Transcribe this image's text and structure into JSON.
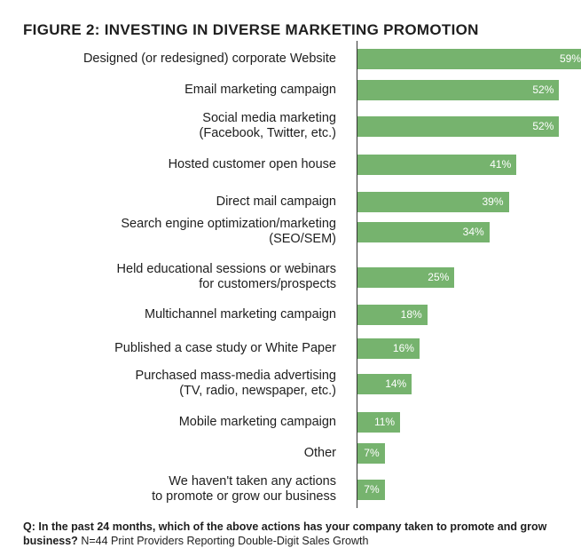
{
  "chart_data": {
    "type": "bar",
    "orientation": "horizontal",
    "title": "FIGURE 2: INVESTING IN DIVERSE MARKETING PROMOTION",
    "categories": [
      "Designed (or redesigned) corporate Website",
      "Email marketing campaign",
      "Social media marketing\n(Facebook, Twitter, etc.)",
      "Hosted customer open house",
      "Direct mail campaign",
      "Search engine optimization/marketing\n(SEO/SEM)",
      "Held educational sessions or webinars\nfor customers/prospects",
      "Multichannel marketing campaign",
      "Published a case study or White Paper",
      "Purchased mass-media advertising\n(TV, radio, newspaper, etc.)",
      "Mobile marketing campaign",
      "Other",
      "We haven't taken any actions\nto promote or grow our business"
    ],
    "values": [
      59,
      52,
      52,
      41,
      39,
      34,
      25,
      18,
      16,
      14,
      11,
      7,
      7
    ],
    "value_labels": [
      "59%",
      "52%",
      "52%",
      "41%",
      "39%",
      "34%",
      "25%",
      "18%",
      "16%",
      "14%",
      "11%",
      "7%",
      "7%"
    ],
    "unit": "%",
    "bar_color": "#76b36e",
    "grid": false,
    "legend": "none"
  },
  "footnote": {
    "question": "Q: In the past 24 months, which of the above actions has your company taken to promote and grow business?",
    "source": "N=44 Print Providers Reporting Double-Digit Sales Growth"
  }
}
